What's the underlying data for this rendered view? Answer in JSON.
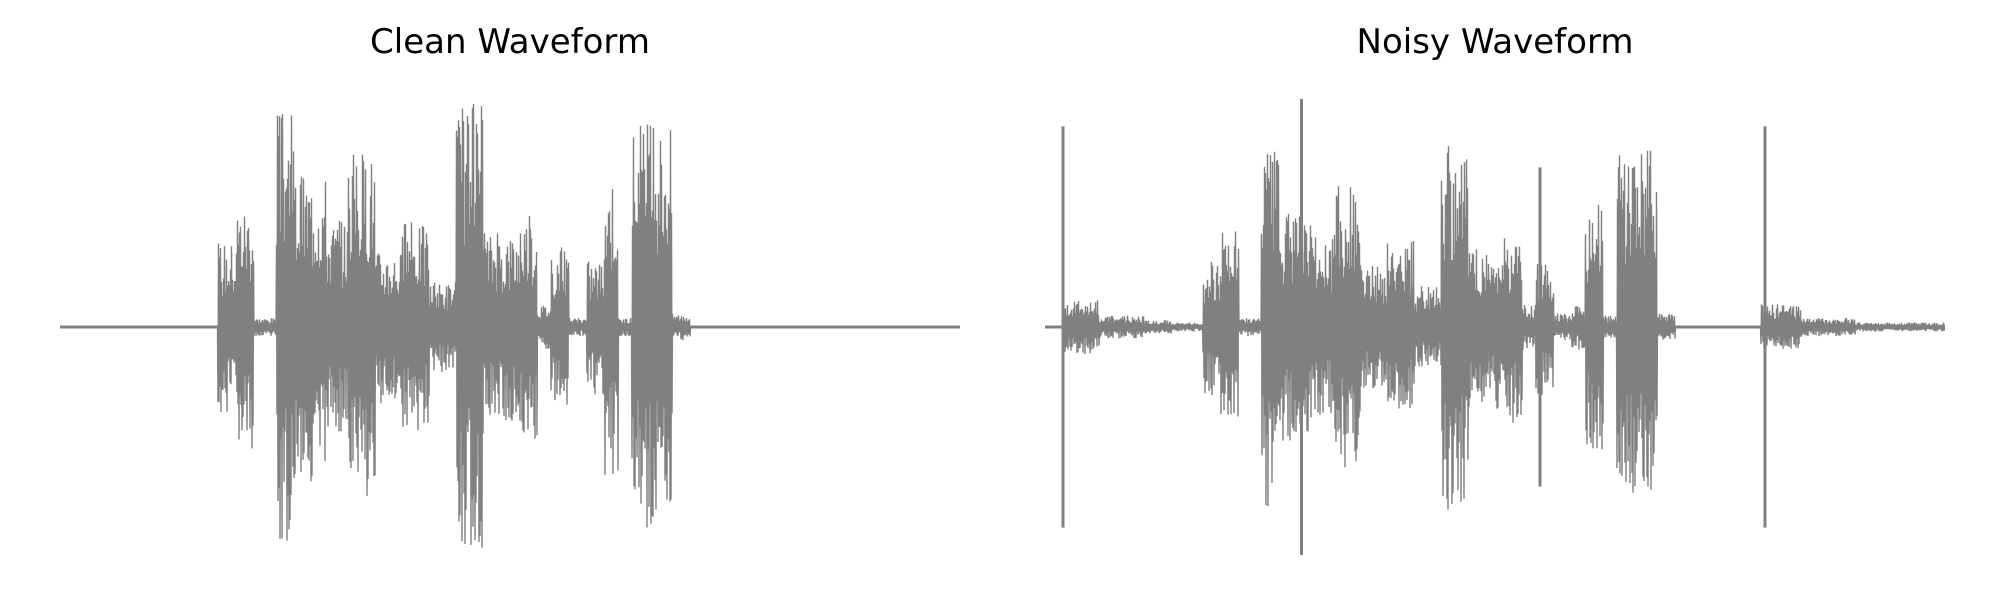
{
  "chart_data": [
    {
      "type": "line",
      "title": "Clean Waveform",
      "axes_visible": false,
      "color": "#808080",
      "x_range": [
        0,
        1
      ],
      "ylim": [
        -1,
        1
      ],
      "segments": [
        {
          "x0": 0.0,
          "x1": 0.175,
          "amp": 0.0
        },
        {
          "x0": 0.175,
          "x1": 0.195,
          "amp": 0.38
        },
        {
          "x0": 0.195,
          "x1": 0.215,
          "amp": 0.55
        },
        {
          "x0": 0.215,
          "x1": 0.24,
          "amp": 0.04
        },
        {
          "x0": 0.24,
          "x1": 0.26,
          "amp": 0.95
        },
        {
          "x0": 0.26,
          "x1": 0.295,
          "amp": 0.68
        },
        {
          "x0": 0.295,
          "x1": 0.32,
          "amp": 0.48
        },
        {
          "x0": 0.32,
          "x1": 0.35,
          "amp": 0.78
        },
        {
          "x0": 0.35,
          "x1": 0.38,
          "amp": 0.34
        },
        {
          "x0": 0.38,
          "x1": 0.41,
          "amp": 0.46
        },
        {
          "x0": 0.41,
          "x1": 0.44,
          "amp": 0.2
        },
        {
          "x0": 0.44,
          "x1": 0.47,
          "amp": 0.98
        },
        {
          "x0": 0.47,
          "x1": 0.51,
          "amp": 0.42
        },
        {
          "x0": 0.51,
          "x1": 0.53,
          "amp": 0.5
        },
        {
          "x0": 0.53,
          "x1": 0.545,
          "amp": 0.1
        },
        {
          "x0": 0.545,
          "x1": 0.565,
          "amp": 0.36
        },
        {
          "x0": 0.565,
          "x1": 0.585,
          "amp": 0.04
        },
        {
          "x0": 0.585,
          "x1": 0.605,
          "amp": 0.3
        },
        {
          "x0": 0.605,
          "x1": 0.62,
          "amp": 0.68
        },
        {
          "x0": 0.62,
          "x1": 0.635,
          "amp": 0.04
        },
        {
          "x0": 0.635,
          "x1": 0.68,
          "amp": 0.9
        },
        {
          "x0": 0.68,
          "x1": 0.7,
          "amp": 0.06
        },
        {
          "x0": 0.7,
          "x1": 1.0,
          "amp": 0.0
        }
      ]
    },
    {
      "type": "line",
      "title": "Noisy Waveform",
      "axes_visible": false,
      "color": "#808080",
      "x_range": [
        0,
        1
      ],
      "ylim": [
        -1,
        1
      ],
      "segments": [
        {
          "x0": 0.0,
          "x1": 0.02,
          "amp": 0.0
        },
        {
          "x0": 0.02,
          "x1": 0.06,
          "amp": 0.12
        },
        {
          "x0": 0.06,
          "x1": 0.11,
          "amp": 0.05
        },
        {
          "x0": 0.11,
          "x1": 0.14,
          "amp": 0.03
        },
        {
          "x0": 0.14,
          "x1": 0.175,
          "amp": 0.02
        },
        {
          "x0": 0.175,
          "x1": 0.195,
          "amp": 0.3
        },
        {
          "x0": 0.195,
          "x1": 0.215,
          "amp": 0.42
        },
        {
          "x0": 0.215,
          "x1": 0.24,
          "amp": 0.04
        },
        {
          "x0": 0.24,
          "x1": 0.26,
          "amp": 0.8
        },
        {
          "x0": 0.26,
          "x1": 0.295,
          "amp": 0.5
        },
        {
          "x0": 0.295,
          "x1": 0.32,
          "amp": 0.4
        },
        {
          "x0": 0.32,
          "x1": 0.35,
          "amp": 0.62
        },
        {
          "x0": 0.35,
          "x1": 0.38,
          "amp": 0.28
        },
        {
          "x0": 0.38,
          "x1": 0.41,
          "amp": 0.38
        },
        {
          "x0": 0.41,
          "x1": 0.44,
          "amp": 0.18
        },
        {
          "x0": 0.44,
          "x1": 0.47,
          "amp": 0.82
        },
        {
          "x0": 0.47,
          "x1": 0.51,
          "amp": 0.36
        },
        {
          "x0": 0.51,
          "x1": 0.53,
          "amp": 0.42
        },
        {
          "x0": 0.53,
          "x1": 0.545,
          "amp": 0.1
        },
        {
          "x0": 0.545,
          "x1": 0.565,
          "amp": 0.3
        },
        {
          "x0": 0.565,
          "x1": 0.585,
          "amp": 0.06
        },
        {
          "x0": 0.585,
          "x1": 0.6,
          "amp": 0.1
        },
        {
          "x0": 0.6,
          "x1": 0.62,
          "amp": 0.55
        },
        {
          "x0": 0.62,
          "x1": 0.635,
          "amp": 0.05
        },
        {
          "x0": 0.635,
          "x1": 0.68,
          "amp": 0.78
        },
        {
          "x0": 0.68,
          "x1": 0.7,
          "amp": 0.06
        },
        {
          "x0": 0.7,
          "x1": 0.795,
          "amp": 0.0
        },
        {
          "x0": 0.795,
          "x1": 0.84,
          "amp": 0.1
        },
        {
          "x0": 0.84,
          "x1": 0.9,
          "amp": 0.04
        },
        {
          "x0": 0.9,
          "x1": 1.0,
          "amp": 0.02
        }
      ],
      "clicks": [
        {
          "x": 0.02,
          "y_top": 0.88,
          "y_bottom": -0.88
        },
        {
          "x": 0.285,
          "y_top": 1.0,
          "y_bottom": -1.0
        },
        {
          "x": 0.55,
          "y_top": 0.7,
          "y_bottom": -0.7
        },
        {
          "x": 0.8,
          "y_top": 0.88,
          "y_bottom": -0.88
        }
      ]
    }
  ]
}
